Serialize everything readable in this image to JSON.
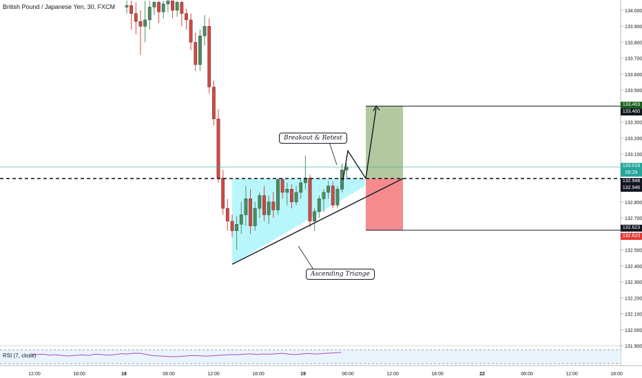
{
  "title": "British Pound / Japanese Yen, 30, FXCM",
  "annotations": {
    "breakout": "Breakout & Retest",
    "triangle": "Ascending Triange"
  },
  "rsi_label": "RSI (7, close)",
  "price_tags": {
    "target_top": "133.403",
    "target": "133.400",
    "current": "133.019",
    "countdown": "05:29",
    "level_a": "132.948",
    "level_b": "132.946",
    "stop_a": "132.623",
    "stop_b": "132.623"
  },
  "colors": {
    "up": "#4c8c5e",
    "down": "#d4473f",
    "triangle_fill": "#b3f5fa",
    "profit": "#a5c08f",
    "loss": "#f2777b",
    "current": "#26a69a",
    "target_tag": "#1b5e20",
    "stop_tag": "#e53935",
    "rsi_line": "#ab47bc"
  },
  "chart_data": {
    "type": "candlestick",
    "symbol": "British Pound / Japanese Yen",
    "interval": "30",
    "y_ticks": [
      134.0,
      133.9,
      133.8,
      133.7,
      133.6,
      133.5,
      133.4,
      133.3,
      133.2,
      133.1,
      133.0,
      132.9,
      132.8,
      132.7,
      132.6,
      132.5,
      132.4,
      132.3,
      132.2,
      132.1,
      132.0,
      131.9
    ],
    "ylim": [
      131.87,
      134.06
    ],
    "x_ticks": [
      "12:00",
      "18:00",
      "18",
      "06:00",
      "12:00",
      "18:00",
      "19",
      "06:00",
      "12:00",
      "18:00",
      "22",
      "06:00",
      "12:00",
      "18:00"
    ],
    "candles": [
      {
        "o": 134.02,
        "h": 134.06,
        "l": 133.98,
        "c": 134.03
      },
      {
        "o": 134.03,
        "h": 134.06,
        "l": 133.88,
        "c": 133.98
      },
      {
        "o": 133.98,
        "h": 134.05,
        "l": 133.85,
        "c": 133.93
      },
      {
        "o": 133.93,
        "h": 134.0,
        "l": 133.72,
        "c": 133.9
      },
      {
        "o": 133.9,
        "h": 134.06,
        "l": 133.8,
        "c": 133.94
      },
      {
        "o": 133.94,
        "h": 134.06,
        "l": 133.88,
        "c": 134.02
      },
      {
        "o": 134.02,
        "h": 134.06,
        "l": 133.97,
        "c": 134.05
      },
      {
        "o": 134.05,
        "h": 134.06,
        "l": 133.92,
        "c": 133.99
      },
      {
        "o": 133.99,
        "h": 134.06,
        "l": 133.95,
        "c": 134.04
      },
      {
        "o": 134.04,
        "h": 134.06,
        "l": 133.99,
        "c": 134.06
      },
      {
        "o": 134.06,
        "h": 134.06,
        "l": 133.95,
        "c": 134.0
      },
      {
        "o": 134.0,
        "h": 134.06,
        "l": 133.96,
        "c": 134.05
      },
      {
        "o": 134.05,
        "h": 134.06,
        "l": 133.9,
        "c": 133.98
      },
      {
        "o": 133.98,
        "h": 134.01,
        "l": 133.88,
        "c": 133.94
      },
      {
        "o": 133.94,
        "h": 133.98,
        "l": 133.75,
        "c": 133.8
      },
      {
        "o": 133.8,
        "h": 133.86,
        "l": 133.62,
        "c": 133.66
      },
      {
        "o": 133.66,
        "h": 133.88,
        "l": 133.62,
        "c": 133.84
      },
      {
        "o": 133.84,
        "h": 133.97,
        "l": 133.78,
        "c": 133.9
      },
      {
        "o": 133.9,
        "h": 133.95,
        "l": 133.48,
        "c": 133.52
      },
      {
        "o": 133.52,
        "h": 133.56,
        "l": 133.28,
        "c": 133.32
      },
      {
        "o": 133.32,
        "h": 133.38,
        "l": 132.92,
        "c": 132.95
      },
      {
        "o": 132.95,
        "h": 133.0,
        "l": 132.72,
        "c": 132.76
      },
      {
        "o": 132.76,
        "h": 132.82,
        "l": 132.62,
        "c": 132.68
      },
      {
        "o": 132.68,
        "h": 132.72,
        "l": 132.58,
        "c": 132.62
      },
      {
        "o": 132.62,
        "h": 132.71,
        "l": 132.5,
        "c": 132.66
      },
      {
        "o": 132.66,
        "h": 132.8,
        "l": 132.6,
        "c": 132.72
      },
      {
        "o": 132.72,
        "h": 132.9,
        "l": 132.65,
        "c": 132.82
      },
      {
        "o": 132.82,
        "h": 132.88,
        "l": 132.6,
        "c": 132.65
      },
      {
        "o": 132.65,
        "h": 132.8,
        "l": 132.62,
        "c": 132.76
      },
      {
        "o": 132.76,
        "h": 132.86,
        "l": 132.7,
        "c": 132.84
      },
      {
        "o": 132.84,
        "h": 132.9,
        "l": 132.68,
        "c": 132.72
      },
      {
        "o": 132.72,
        "h": 132.84,
        "l": 132.66,
        "c": 132.8
      },
      {
        "o": 132.8,
        "h": 132.86,
        "l": 132.7,
        "c": 132.75
      },
      {
        "o": 132.75,
        "h": 132.95,
        "l": 132.72,
        "c": 132.94
      },
      {
        "o": 132.94,
        "h": 132.95,
        "l": 132.82,
        "c": 132.86
      },
      {
        "o": 132.86,
        "h": 132.92,
        "l": 132.78,
        "c": 132.88
      },
      {
        "o": 132.88,
        "h": 132.91,
        "l": 132.76,
        "c": 132.8
      },
      {
        "o": 132.8,
        "h": 132.9,
        "l": 132.78,
        "c": 132.86
      },
      {
        "o": 132.86,
        "h": 132.94,
        "l": 132.82,
        "c": 132.92
      },
      {
        "o": 132.92,
        "h": 133.09,
        "l": 132.88,
        "c": 132.95
      },
      {
        "o": 132.95,
        "h": 132.97,
        "l": 132.64,
        "c": 132.68
      },
      {
        "o": 132.68,
        "h": 132.76,
        "l": 132.62,
        "c": 132.74
      },
      {
        "o": 132.74,
        "h": 132.84,
        "l": 132.7,
        "c": 132.82
      },
      {
        "o": 132.82,
        "h": 132.88,
        "l": 132.74,
        "c": 132.86
      },
      {
        "o": 132.86,
        "h": 132.93,
        "l": 132.82,
        "c": 132.9
      },
      {
        "o": 132.9,
        "h": 132.93,
        "l": 132.76,
        "c": 132.78
      },
      {
        "o": 132.78,
        "h": 132.9,
        "l": 132.76,
        "c": 132.88
      },
      {
        "o": 132.88,
        "h": 133.04,
        "l": 132.86,
        "c": 133.0
      },
      {
        "o": 133.0,
        "h": 133.04,
        "l": 132.94,
        "c": 133.02
      }
    ],
    "triangle": {
      "p1": [
        132.41
      ],
      "p2": [
        132.95
      ]
    },
    "levels": {
      "resistance": 132.947,
      "current": 133.019,
      "target": 133.4,
      "stop": 132.623
    },
    "rsi": [
      62,
      58,
      60,
      55,
      57,
      52,
      50,
      54,
      56,
      53,
      60,
      58,
      55,
      57,
      63,
      61,
      66,
      65,
      58,
      52,
      50,
      48,
      46,
      47,
      50,
      53,
      52,
      49,
      51,
      54,
      56,
      58,
      57,
      60,
      62,
      59,
      61,
      60,
      63,
      65,
      60,
      58,
      62,
      64,
      61,
      63,
      66,
      68,
      70
    ]
  }
}
